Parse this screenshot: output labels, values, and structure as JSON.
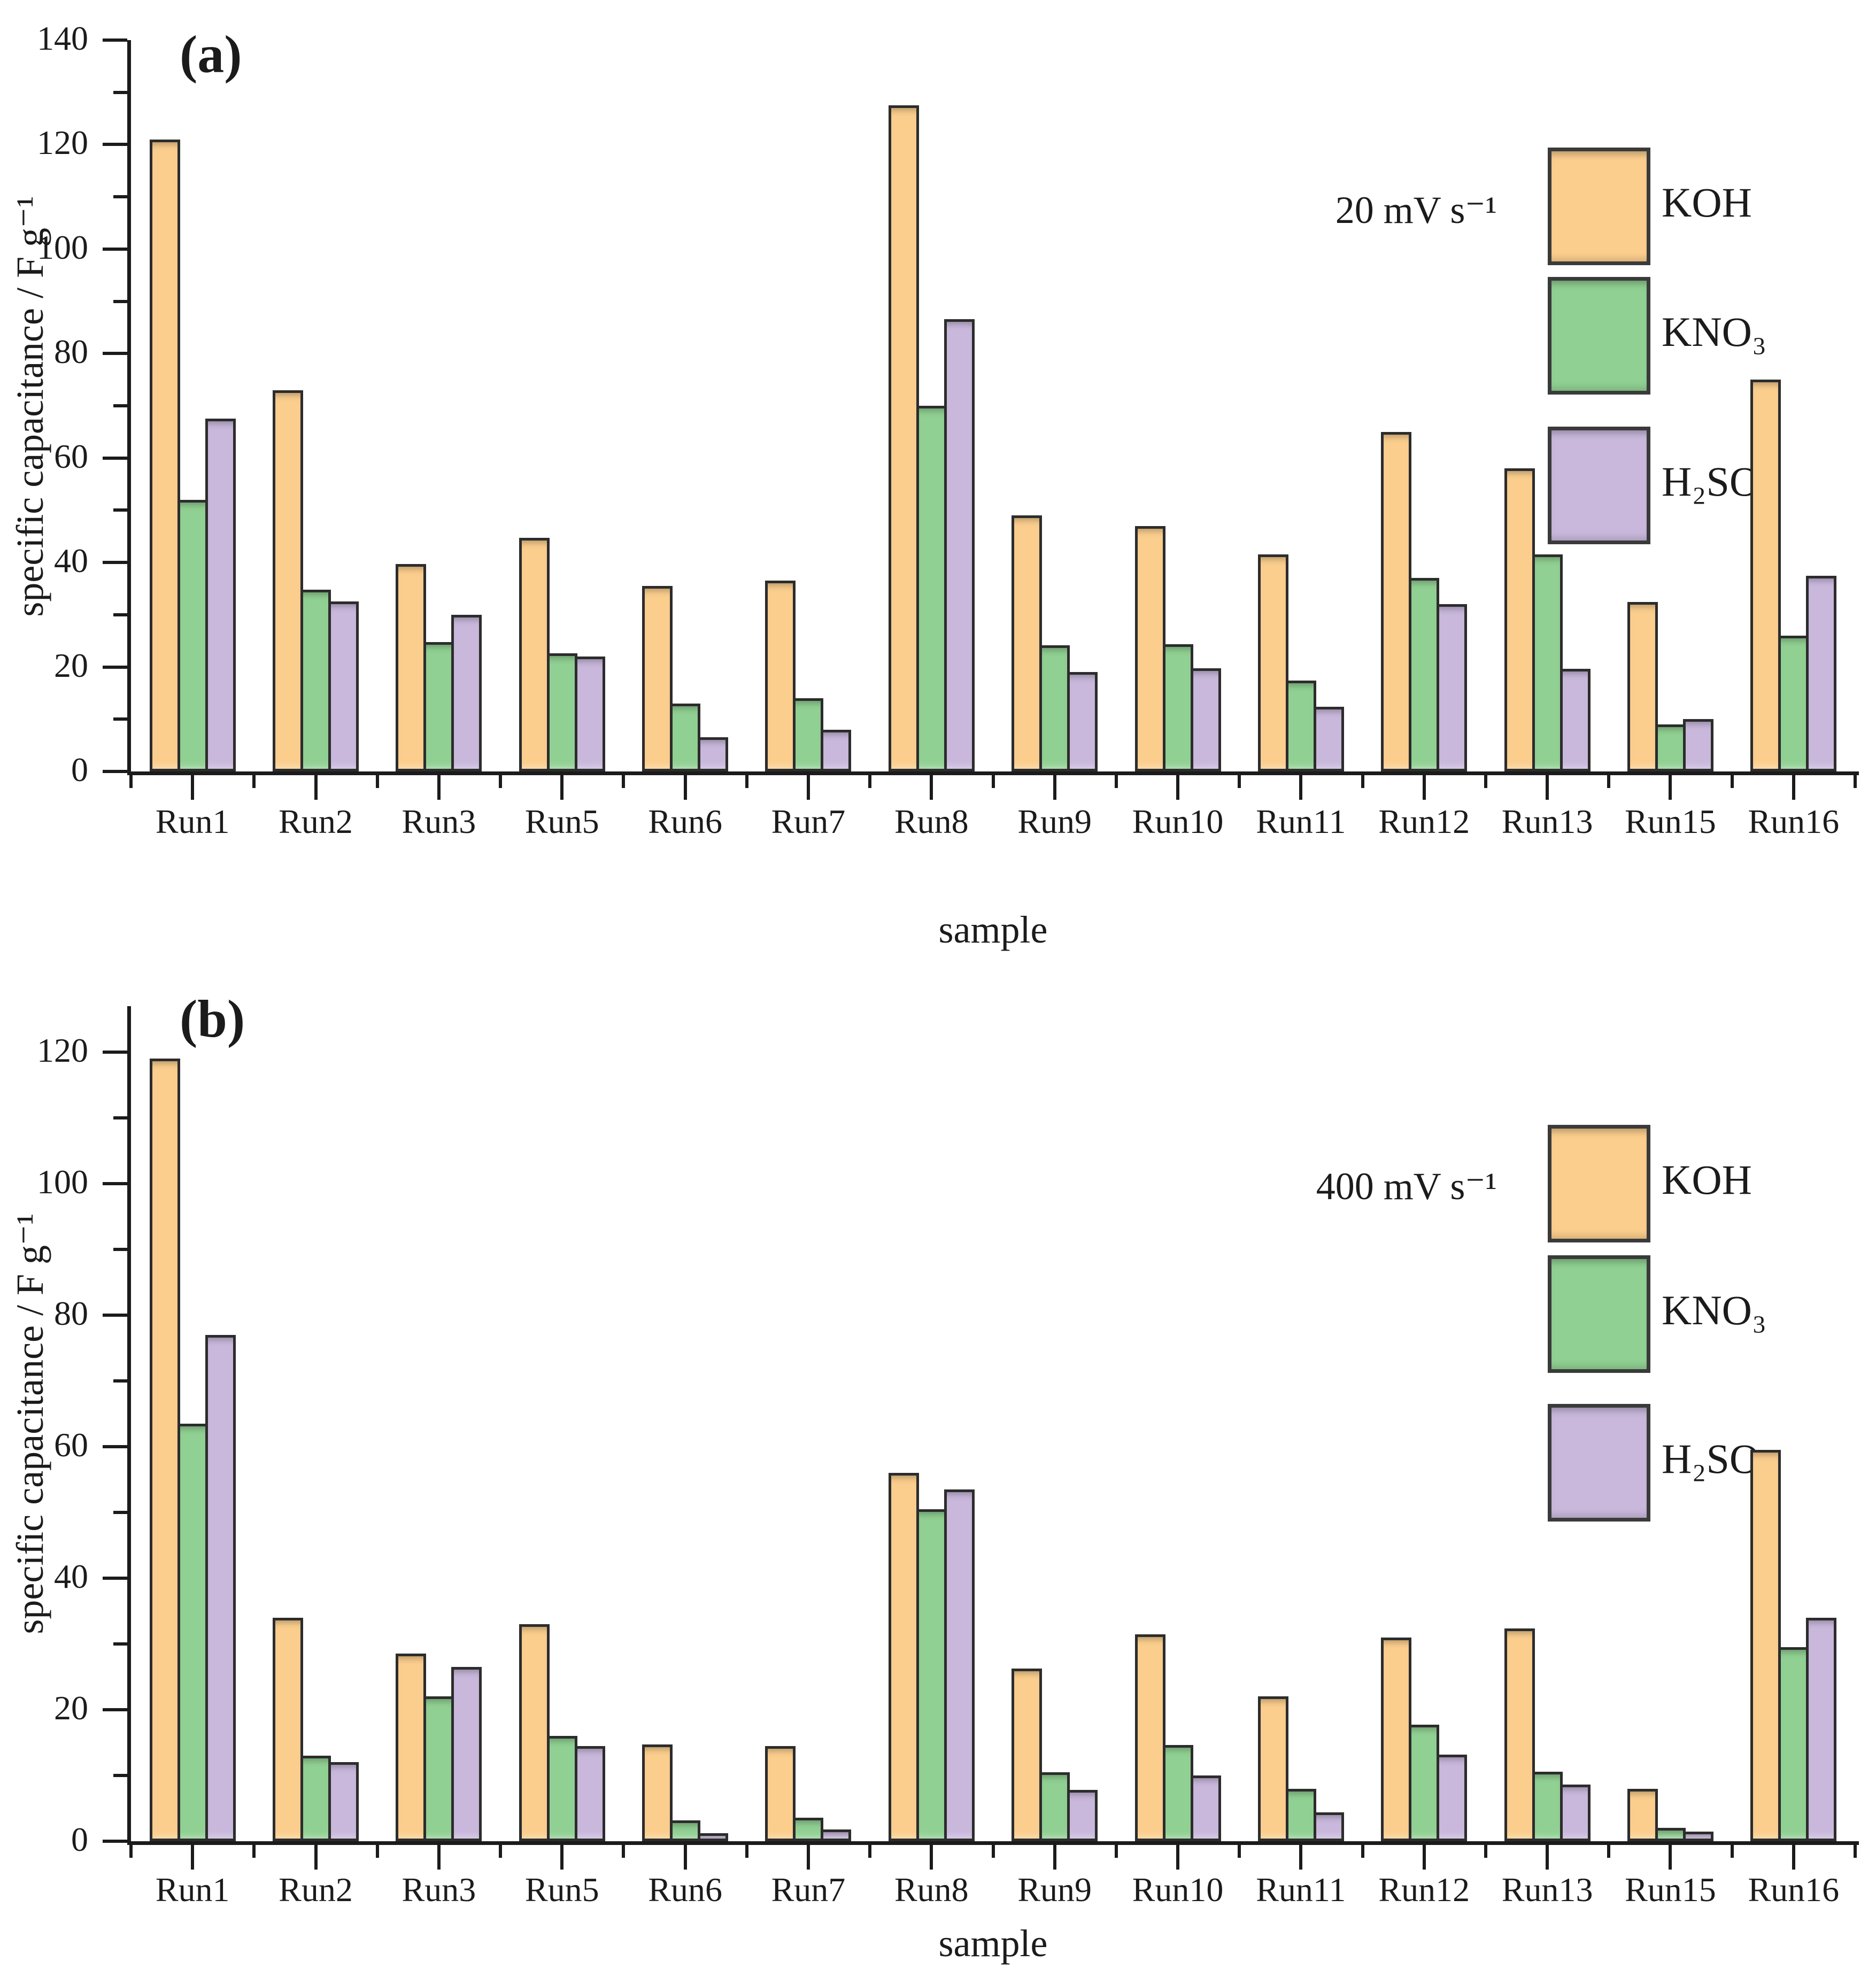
{
  "figure": {
    "background": "#ffffff",
    "text_color": "#1b1b1b",
    "axis_color": "#1b1b1b",
    "bar_edge_color": "#2c2c2c"
  },
  "chart_data": [
    {
      "type": "bar",
      "panel_label": "(a)",
      "annotation": "20 mV s⁻¹",
      "title": "",
      "xlabel": "sample",
      "ylabel": "specific capacitance / F g⁻¹",
      "ylim": [
        0,
        140
      ],
      "yticks": [
        0,
        20,
        40,
        60,
        80,
        100,
        120,
        140
      ],
      "minor_tick_step": 10,
      "grid": false,
      "legend_position": "upper right",
      "categories": [
        "Run1",
        "Run2",
        "Run3",
        "Run5",
        "Run6",
        "Run7",
        "Run8",
        "Run9",
        "Run10",
        "Run11",
        "Run12",
        "Run13",
        "Run15",
        "Run16"
      ],
      "series": [
        {
          "name": "KOH",
          "color": "#fbce8d",
          "values": [
            121,
            73,
            39.7,
            44.7,
            35.5,
            36.5,
            127.5,
            49,
            47,
            41.5,
            65,
            58,
            32.4,
            75
          ]
        },
        {
          "name": "KNO₃",
          "color": "#90d092",
          "values": [
            52,
            34.8,
            24.8,
            22.6,
            13,
            14,
            70,
            24.2,
            24.4,
            17.4,
            37,
            41.6,
            9,
            26
          ]
        },
        {
          "name": "H₂SO₄",
          "color": "#c9b8dc",
          "values": [
            67.5,
            32.5,
            30,
            22,
            6.6,
            8,
            86.6,
            19,
            19.8,
            12.4,
            32,
            19.6,
            10,
            37.5
          ]
        }
      ]
    },
    {
      "type": "bar",
      "panel_label": "(b)",
      "annotation": "400 mV s⁻¹",
      "title": "",
      "xlabel": "sample",
      "ylabel": "specific capacitance / F g⁻¹",
      "ylim": [
        0,
        127
      ],
      "yticks": [
        0,
        20,
        40,
        60,
        80,
        100,
        120
      ],
      "minor_tick_step": 10,
      "grid": false,
      "legend_position": "upper right",
      "categories": [
        "Run1",
        "Run2",
        "Run3",
        "Run5",
        "Run6",
        "Run7",
        "Run8",
        "Run9",
        "Run10",
        "Run11",
        "Run12",
        "Run13",
        "Run15",
        "Run16"
      ],
      "series": [
        {
          "name": "KOH",
          "color": "#fbce8d",
          "values": [
            119,
            34,
            28.5,
            33,
            14.7,
            14.5,
            56,
            26.3,
            31.5,
            22,
            31,
            32.4,
            8,
            59.5
          ]
        },
        {
          "name": "KNO₃",
          "color": "#90d092",
          "values": [
            63.5,
            13,
            22,
            16,
            3.2,
            3.6,
            50.5,
            10.5,
            14.6,
            8,
            17.7,
            10.6,
            2,
            29.5
          ]
        },
        {
          "name": "H₂SO₄",
          "color": "#c9b8dc",
          "values": [
            77,
            12,
            26.5,
            14.5,
            1.2,
            1.8,
            53.5,
            7.8,
            10,
            4.4,
            13.2,
            8.6,
            1.5,
            34
          ]
        }
      ]
    }
  ]
}
